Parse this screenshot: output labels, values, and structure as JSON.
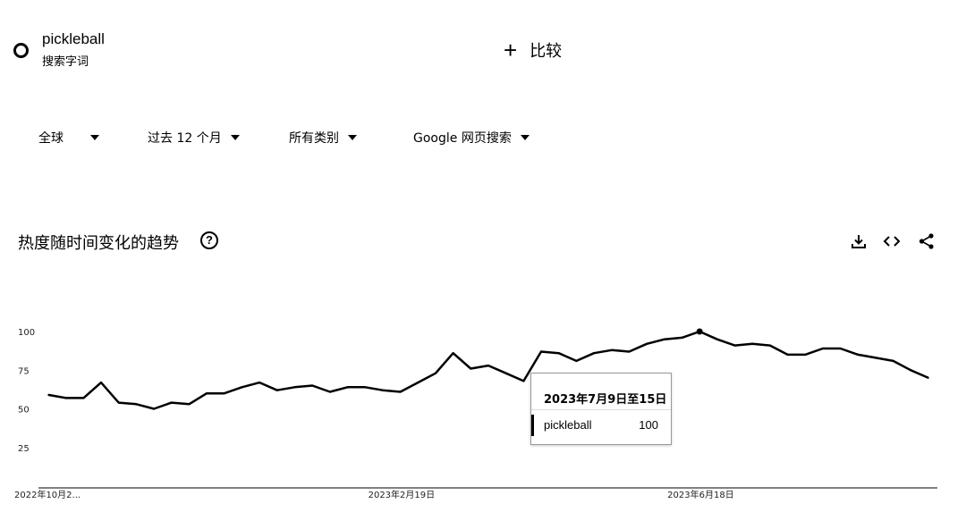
{
  "term": {
    "name": "pickleball",
    "subtitle": "搜索字词"
  },
  "compare": {
    "label": "比较"
  },
  "filters": [
    {
      "label": "全球"
    },
    {
      "label": "过去 12 个月"
    },
    {
      "label": "所有类别"
    },
    {
      "label": "Google 网页搜索"
    }
  ],
  "section": {
    "title": "热度随时间变化的趋势"
  },
  "icons": {
    "help": "help-icon",
    "download": "download-icon",
    "embed": "embed-icon",
    "share": "share-icon"
  },
  "chart_data": {
    "type": "line",
    "series": [
      {
        "name": "pickleball",
        "values": [
          59,
          57,
          57,
          67,
          54,
          53,
          50,
          54,
          53,
          60,
          60,
          64,
          67,
          62,
          64,
          65,
          61,
          64,
          64,
          62,
          61,
          67,
          73,
          86,
          76,
          78,
          73,
          68,
          87,
          86,
          81,
          86,
          88,
          87,
          92,
          95,
          96,
          100,
          95,
          91,
          92,
          91,
          85,
          85,
          89,
          89,
          85,
          83,
          81,
          75,
          70
        ]
      }
    ],
    "ylim": [
      0,
      100
    ],
    "yticks": [
      100,
      75,
      50,
      25
    ],
    "xtick_labels": [
      "2022年10月2...",
      "2023年2月19日",
      "2023年6月18日"
    ],
    "xtick_indices": [
      0,
      20,
      37
    ],
    "grid": false,
    "tooltip": {
      "date": "2023年7月9日至15日",
      "series": "pickleball",
      "value": "100",
      "index": 37
    }
  }
}
